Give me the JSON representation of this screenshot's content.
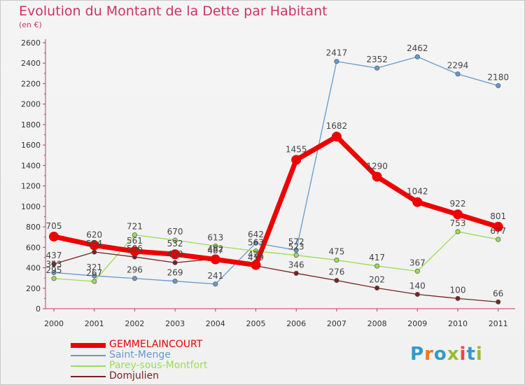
{
  "title": "Evolution du Montant de la Dette par Habitant",
  "unit": "(en €)",
  "logo": {
    "letters": [
      "P",
      "r",
      "o",
      "x",
      "i",
      "t",
      "i"
    ]
  },
  "chart_data": {
    "type": "line",
    "x": [
      "2000",
      "2001",
      "2002",
      "2003",
      "2004",
      "2005",
      "2006",
      "2007",
      "2008",
      "2009",
      "2010",
      "2011"
    ],
    "ylim": [
      0,
      2600
    ],
    "yticks": [
      0,
      200,
      400,
      600,
      800,
      1000,
      1200,
      1400,
      1600,
      1800,
      2000,
      2200,
      2400,
      2600
    ],
    "grid": false,
    "legend": "bottom-left",
    "series": [
      {
        "name": "GEMMELAINCOURT",
        "color": "#ee0000",
        "values": [
          705,
          620,
          561,
          532,
          482,
          427,
          1455,
          1682,
          1290,
          1042,
          922,
          801
        ]
      },
      {
        "name": "Saint-Menge",
        "color": "#6699cc",
        "values": [
          353,
          321,
          296,
          269,
          241,
          642,
          572,
          2417,
          2352,
          2462,
          2294,
          2180
        ]
      },
      {
        "name": "Parey-sous-Montfort",
        "color": "#99dd55",
        "values": [
          295,
          267,
          721,
          670,
          613,
          563,
          523,
          475,
          417,
          367,
          753,
          677
        ]
      },
      {
        "name": "Domjulien",
        "color": "#772222",
        "values": [
          437,
          554,
          506,
          450,
          487,
          419,
          346,
          276,
          202,
          140,
          100,
          66
        ]
      }
    ]
  }
}
